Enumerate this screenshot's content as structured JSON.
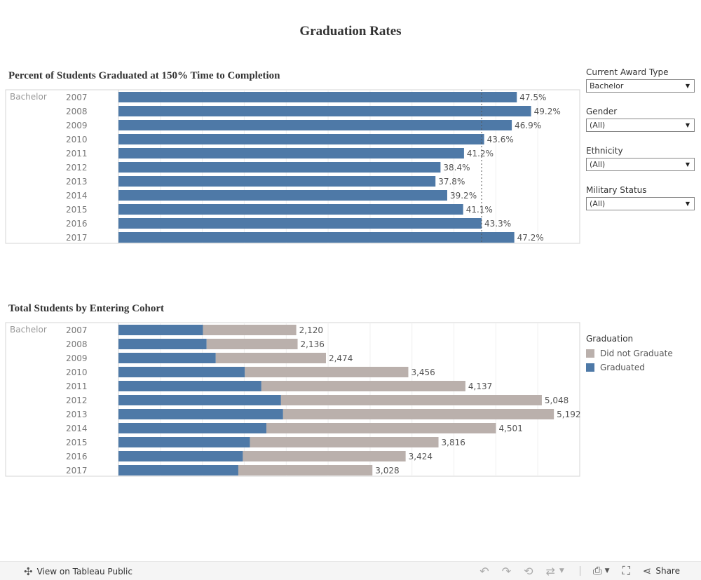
{
  "page": {
    "title": "Graduation Rates"
  },
  "filters": [
    {
      "label": "Current Award Type",
      "value": "Bachelor"
    },
    {
      "label": "Gender",
      "value": "(All)"
    },
    {
      "label": "Ethnicity",
      "value": "(All)"
    },
    {
      "label": "Military Status",
      "value": "(All)"
    }
  ],
  "legend": {
    "title": "Graduation",
    "items": [
      {
        "label": "Did not Graduate",
        "color": "#bab0ac"
      },
      {
        "label": "Graduated",
        "color": "#4e79a7"
      }
    ]
  },
  "footer": {
    "view_label": "View on Tableau Public",
    "share_label": "Share"
  },
  "colors": {
    "graduated": "#4e79a7",
    "not_graduated": "#bab0ac",
    "reference": "#555555"
  },
  "chart_data": [
    {
      "type": "bar",
      "title": "Percent of Students Graduated at 150% Time to Completion",
      "row_header": "Bachelor",
      "categories": [
        "2007",
        "2008",
        "2009",
        "2010",
        "2011",
        "2012",
        "2013",
        "2014",
        "2015",
        "2016",
        "2017"
      ],
      "values": [
        47.5,
        49.2,
        46.9,
        43.6,
        41.2,
        38.4,
        37.8,
        39.2,
        41.1,
        43.3,
        47.2
      ],
      "labels": [
        "47.5%",
        "49.2%",
        "46.9%",
        "43.6%",
        "41.2%",
        "38.4%",
        "37.8%",
        "39.2%",
        "41.1%",
        "43.3%",
        "47.2%"
      ],
      "xlim": [
        0,
        55
      ],
      "reference_line": 43.3,
      "orientation": "horizontal"
    },
    {
      "type": "bar",
      "stacked": true,
      "title": "Total Students by Entering Cohort",
      "row_header": "Bachelor",
      "categories": [
        "2007",
        "2008",
        "2009",
        "2010",
        "2011",
        "2012",
        "2013",
        "2014",
        "2015",
        "2016",
        "2017"
      ],
      "series": [
        {
          "name": "Graduated",
          "values": [
            1007,
            1051,
            1160,
            1507,
            1704,
            1938,
            1963,
            1764,
            1568,
            1483,
            1429
          ]
        },
        {
          "name": "Did not Graduate",
          "values": [
            1113,
            1085,
            1314,
            1949,
            2433,
            3110,
            3229,
            2737,
            2248,
            1941,
            1599
          ]
        }
      ],
      "totals": [
        2120,
        2136,
        2474,
        3456,
        4137,
        5048,
        5192,
        4501,
        3816,
        3424,
        3028
      ],
      "labels": [
        "2,120",
        "2,136",
        "2,474",
        "3,456",
        "4,137",
        "5,048",
        "5,192",
        "4,501",
        "3,816",
        "3,424",
        "3,028"
      ],
      "xlim": [
        0,
        5500
      ],
      "orientation": "horizontal"
    }
  ]
}
